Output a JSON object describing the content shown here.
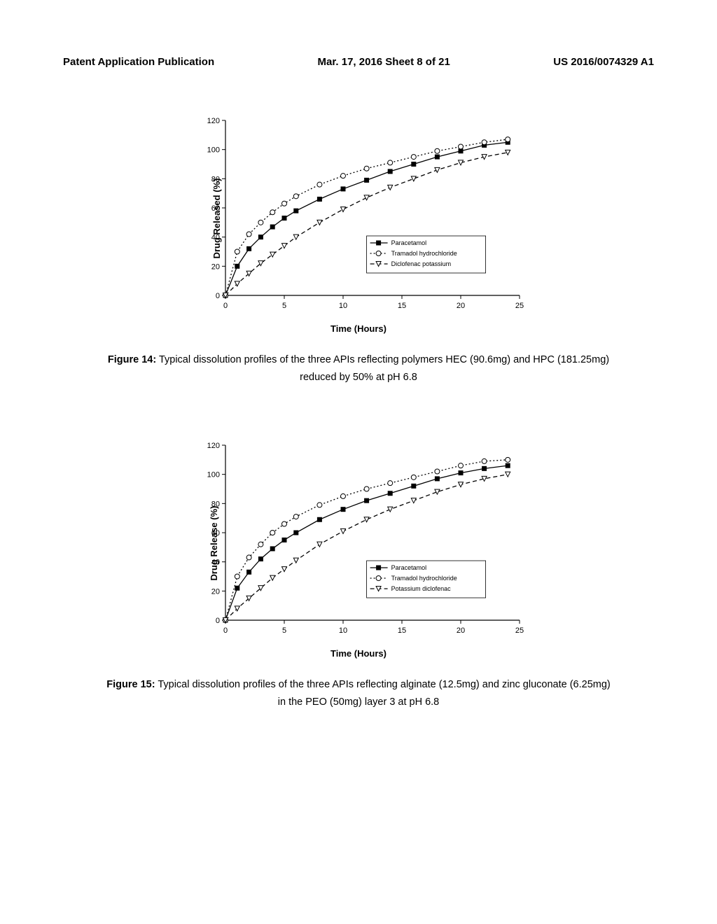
{
  "header": {
    "left": "Patent Application Publication",
    "center": "Mar. 17, 2016  Sheet 8 of 21",
    "right": "US 2016/0074329 A1"
  },
  "chart14": {
    "type": "line-scatter",
    "y_label": "Drug Released (%)",
    "x_label": "Time (Hours)",
    "xlim": [
      0,
      25
    ],
    "xtick_step": 5,
    "ylim": [
      0,
      120
    ],
    "ytick_step": 20,
    "axis_color": "#000000",
    "tick_fontsize": 11,
    "label_fontsize": 13,
    "bg": "#ffffff",
    "series": [
      {
        "name": "Paracetamol",
        "marker": "filled-square",
        "line_style": "solid",
        "color": "#000000",
        "x": [
          0,
          1,
          2,
          3,
          4,
          5,
          6,
          8,
          10,
          12,
          14,
          16,
          18,
          20,
          22,
          24
        ],
        "y": [
          0,
          20,
          32,
          40,
          47,
          53,
          58,
          66,
          73,
          79,
          85,
          90,
          95,
          99,
          103,
          105
        ]
      },
      {
        "name": "Tramadol hydrochloride",
        "marker": "open-circle",
        "line_style": "dotted",
        "color": "#000000",
        "x": [
          0,
          1,
          2,
          3,
          4,
          5,
          6,
          8,
          10,
          12,
          14,
          16,
          18,
          20,
          22,
          24
        ],
        "y": [
          0,
          30,
          42,
          50,
          57,
          63,
          68,
          76,
          82,
          87,
          91,
          95,
          99,
          102,
          105,
          107
        ]
      },
      {
        "name": "Diclofenac potassium",
        "marker": "open-triangle-down",
        "line_style": "dashed",
        "color": "#000000",
        "x": [
          0,
          1,
          2,
          3,
          4,
          5,
          6,
          8,
          10,
          12,
          14,
          16,
          18,
          20,
          22,
          24
        ],
        "y": [
          0,
          8,
          15,
          22,
          28,
          34,
          40,
          50,
          59,
          67,
          74,
          80,
          86,
          91,
          95,
          98
        ]
      }
    ],
    "caption_label": "Figure 14:",
    "caption_text": "Typical dissolution profiles of the three APIs reflecting polymers HEC (90.6mg) and HPC (181.25mg) reduced by 50% at pH 6.8"
  },
  "chart15": {
    "type": "line-scatter",
    "y_label": "Drug Release (%)",
    "x_label": "Time (Hours)",
    "xlim": [
      0,
      25
    ],
    "xtick_step": 5,
    "ylim": [
      0,
      120
    ],
    "ytick_step": 20,
    "axis_color": "#000000",
    "tick_fontsize": 11,
    "label_fontsize": 13,
    "bg": "#ffffff",
    "series": [
      {
        "name": "Paracetamol",
        "marker": "filled-square",
        "line_style": "solid",
        "color": "#000000",
        "x": [
          0,
          1,
          2,
          3,
          4,
          5,
          6,
          8,
          10,
          12,
          14,
          16,
          18,
          20,
          22,
          24
        ],
        "y": [
          0,
          22,
          33,
          42,
          49,
          55,
          60,
          69,
          76,
          82,
          87,
          92,
          97,
          101,
          104,
          106
        ]
      },
      {
        "name": "Tramadol hydrochloride",
        "marker": "open-circle",
        "line_style": "dotted",
        "color": "#000000",
        "x": [
          0,
          1,
          2,
          3,
          4,
          5,
          6,
          8,
          10,
          12,
          14,
          16,
          18,
          20,
          22,
          24
        ],
        "y": [
          0,
          30,
          43,
          52,
          60,
          66,
          71,
          79,
          85,
          90,
          94,
          98,
          102,
          106,
          109,
          110
        ]
      },
      {
        "name": "Potassium diclofenac",
        "marker": "open-triangle-down",
        "line_style": "dashed",
        "color": "#000000",
        "x": [
          0,
          1,
          2,
          3,
          4,
          5,
          6,
          8,
          10,
          12,
          14,
          16,
          18,
          20,
          22,
          24
        ],
        "y": [
          0,
          8,
          15,
          22,
          29,
          35,
          41,
          52,
          61,
          69,
          76,
          82,
          88,
          93,
          97,
          100
        ]
      }
    ],
    "caption_label": "Figure 15:",
    "caption_text": "Typical dissolution profiles of the three APIs reflecting alginate (12.5mg) and zinc gluconate (6.25mg) in the PEO (50mg) layer 3 at pH 6.8"
  }
}
